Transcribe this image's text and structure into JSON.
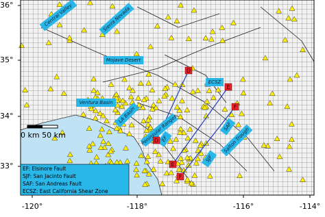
{
  "map": {
    "lat_labels": [
      "36°",
      "35°",
      "34°",
      "33°"
    ],
    "lon_labels": [
      "-120°",
      "-118°",
      "-116°",
      "-114°"
    ],
    "regions": [
      "Central Valley",
      "Sierra Nevada",
      "Mojave Desert",
      "Ventura Basin",
      "LA Basin",
      "Peninsular Ranges",
      "Salton Trough",
      "ECSZ",
      "EF",
      "SJF",
      "SAF"
    ],
    "profile_ends": [
      "D",
      "E",
      "F",
      "D",
      "E",
      "F"
    ],
    "scale": "0 km 50 km",
    "legend": [
      "EF: Elsinore Fault",
      "SJF: San Jacinto Fault",
      "SAF: San Andreas Fault",
      "ECSZ: East California Shear Zone"
    ]
  }
}
